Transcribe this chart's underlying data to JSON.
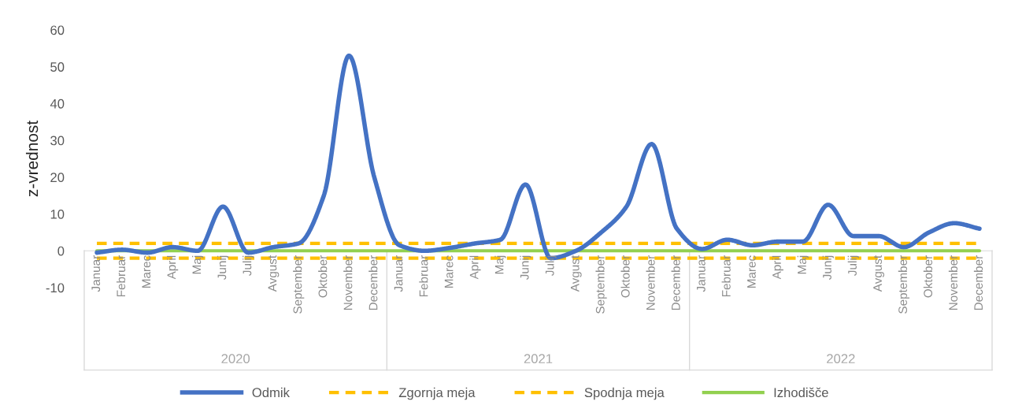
{
  "chart_data": {
    "type": "line",
    "ylabel": "z-vrednost",
    "categories": [
      "Januar",
      "Februar",
      "Marec",
      "April",
      "Maj",
      "Junij",
      "Julij",
      "Avgust",
      "September",
      "Oktober",
      "November",
      "December",
      "Januar",
      "Februar",
      "Marec",
      "April",
      "Maj",
      "Junij",
      "Julij",
      "Avgust",
      "September",
      "Oktober",
      "November",
      "December",
      "Januar",
      "Februar",
      "Marec",
      "April",
      "Maj",
      "Junij",
      "Julij",
      "Avgust",
      "September",
      "Oktober",
      "November",
      "December"
    ],
    "annotations": [
      "2020",
      "2021",
      "2022"
    ],
    "series": [
      {
        "name": "Odmik",
        "color": "#4472c4",
        "line_style": "solid",
        "values": [
          -0.5,
          0.3,
          -0.5,
          1,
          0,
          12,
          -0.5,
          1,
          2,
          15,
          53,
          20,
          1.5,
          0,
          0.8,
          2,
          3,
          18,
          -2,
          0,
          5,
          12,
          29,
          6,
          0.5,
          3,
          1.5,
          2.5,
          2.5,
          12.5,
          4,
          4,
          1,
          5,
          7.5,
          6
        ]
      },
      {
        "name": "Zgornja meja",
        "color": "#ffc000",
        "line_style": "dashed",
        "values": [
          2,
          2,
          2,
          2,
          2,
          2,
          2,
          2,
          2,
          2,
          2,
          2,
          2,
          2,
          2,
          2,
          2,
          2,
          2,
          2,
          2,
          2,
          2,
          2,
          2,
          2,
          2,
          2,
          2,
          2,
          2,
          2,
          2,
          2,
          2,
          2
        ]
      },
      {
        "name": "Spodnja meja",
        "color": "#ffc000",
        "line_style": "dashed",
        "values": [
          -2,
          -2,
          -2,
          -2,
          -2,
          -2,
          -2,
          -2,
          -2,
          -2,
          -2,
          -2,
          -2,
          -2,
          -2,
          -2,
          -2,
          -2,
          -2,
          -2,
          -2,
          -2,
          -2,
          -2,
          -2,
          -2,
          -2,
          -2,
          -2,
          -2,
          -2,
          -2,
          -2,
          -2,
          -2,
          -2
        ]
      },
      {
        "name": "Izhodišče",
        "color": "#92d050",
        "line_style": "solid",
        "values": [
          0,
          0,
          0,
          0,
          0,
          0,
          0,
          0,
          0,
          0,
          0,
          0,
          0,
          0,
          0,
          0,
          0,
          0,
          0,
          0,
          0,
          0,
          0,
          0,
          0,
          0,
          0,
          0,
          0,
          0,
          0,
          0,
          0,
          0,
          0,
          0
        ]
      }
    ],
    "ylim": [
      -10,
      60
    ],
    "yticks": [
      -10,
      0,
      10,
      20,
      30,
      40,
      50,
      60
    ],
    "grid": false,
    "legend": "bottom",
    "marker": "none"
  }
}
